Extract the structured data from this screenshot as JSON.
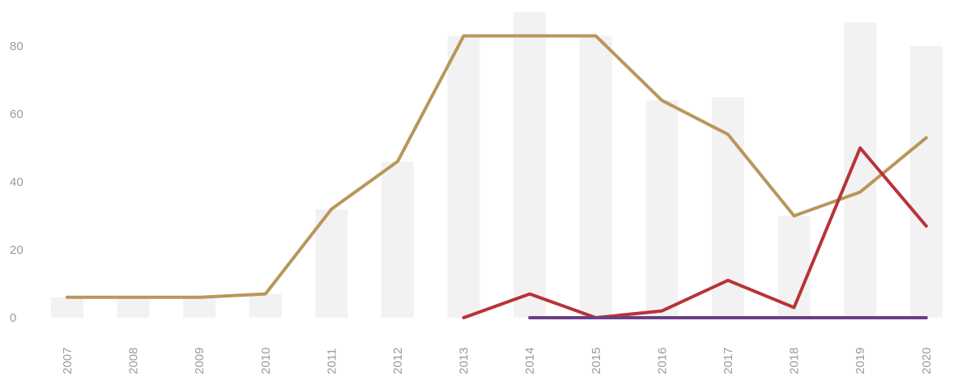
{
  "chart_data": {
    "type": "line",
    "categories": [
      "2007",
      "2008",
      "2009",
      "2010",
      "2011",
      "2012",
      "2013",
      "2014",
      "2015",
      "2016",
      "2017",
      "2018",
      "2019",
      "2020"
    ],
    "bars": {
      "color": "#f2f2f2",
      "values": [
        6,
        6,
        6,
        7,
        32,
        46,
        83,
        90,
        83,
        64,
        65,
        30,
        87,
        80
      ]
    },
    "series": [
      {
        "color": "#b8975a",
        "values": [
          6,
          6,
          6,
          7,
          32,
          46,
          83,
          83,
          83,
          64,
          54,
          30,
          37,
          53
        ]
      },
      {
        "color": "#b83338",
        "values": [
          null,
          null,
          null,
          null,
          null,
          null,
          0,
          7,
          0,
          2,
          11,
          3,
          50,
          27
        ]
      },
      {
        "color": "#6b3f86",
        "values": [
          null,
          null,
          null,
          null,
          null,
          null,
          null,
          0,
          0,
          0,
          0,
          0,
          0,
          0
        ]
      }
    ],
    "yticks": [
      0,
      20,
      40,
      60,
      80
    ],
    "ylim": [
      0,
      90
    ],
    "grid": false,
    "title": "",
    "xlabel": "",
    "ylabel": ""
  }
}
